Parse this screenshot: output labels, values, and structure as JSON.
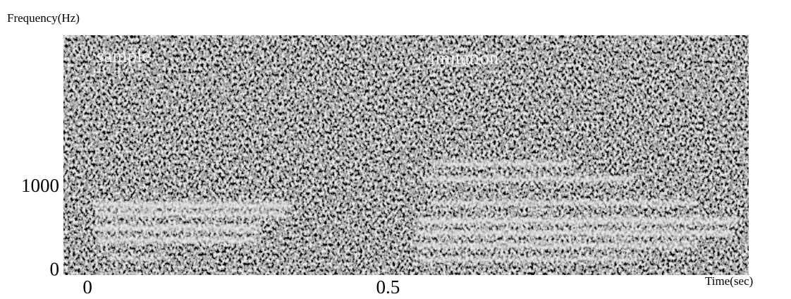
{
  "chart_data": {
    "type": "spectrogram",
    "x_label": "Time(sec)",
    "y_label": "Frequency(Hz)",
    "xlim": [
      -0.04,
      1.1
    ],
    "xticks": [
      0,
      0.5
    ],
    "ylim": [
      -50,
      2830
    ],
    "yticks": [
      0,
      1000
    ],
    "annotations": [
      "sample",
      "imitation"
    ]
  }
}
